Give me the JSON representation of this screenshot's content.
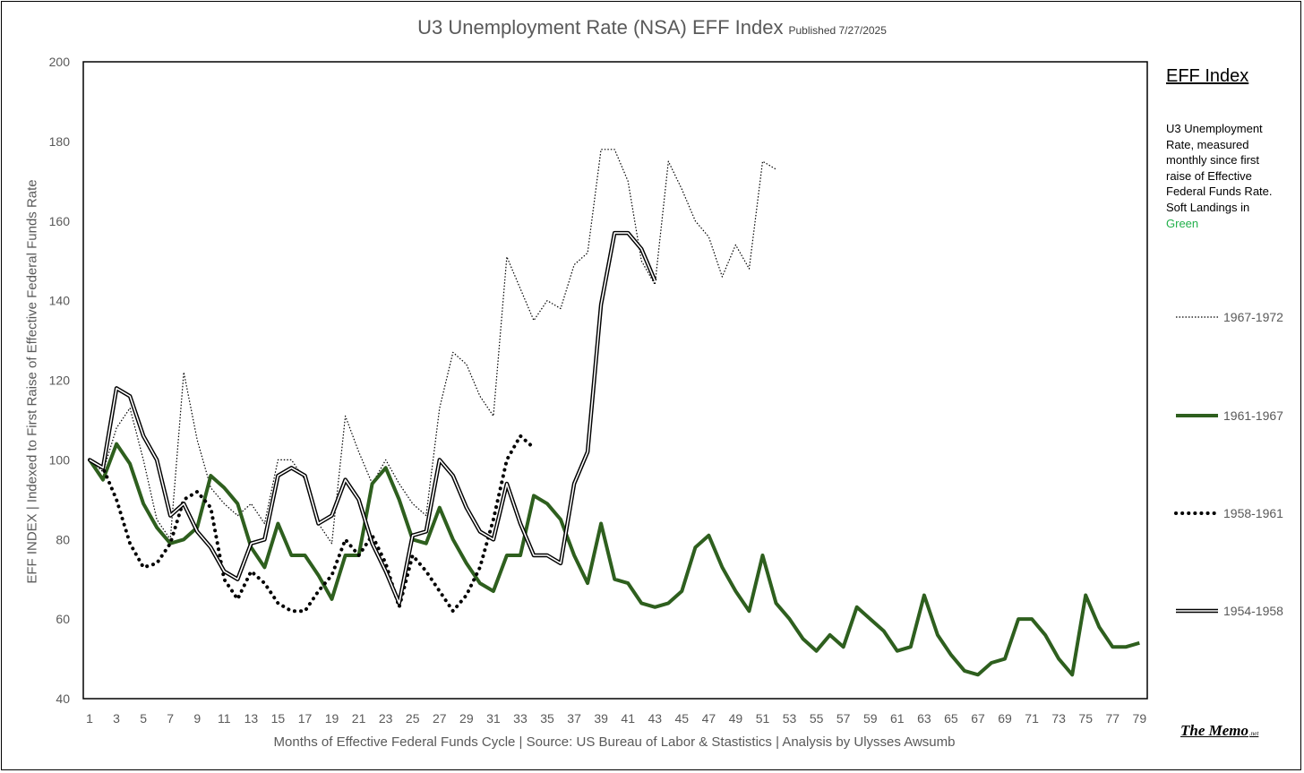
{
  "chart_data": {
    "type": "line",
    "title": "U3 Unemployment Rate (NSA) EFF Index",
    "published": "Published 7/27/2025",
    "xlabel": "Months of Effective Federal Funds Cycle  |  Source: US Bureau of Labor & Stastistics  |  Analysis by Ulysses Awsumb",
    "ylabel": "EFF INDEX | Indexed to First Raise of Effective Federal Funds Rate",
    "ylim": [
      40,
      200
    ],
    "y_ticks": [
      40,
      60,
      80,
      100,
      120,
      140,
      160,
      180,
      200
    ],
    "xlim": [
      1,
      79
    ],
    "x_ticks": [
      1,
      3,
      5,
      7,
      9,
      11,
      13,
      15,
      17,
      19,
      21,
      23,
      25,
      27,
      29,
      31,
      33,
      35,
      37,
      39,
      41,
      43,
      45,
      47,
      49,
      51,
      53,
      55,
      57,
      59,
      61,
      63,
      65,
      67,
      69,
      71,
      73,
      75,
      77,
      79
    ],
    "legend_position": "right",
    "series": [
      {
        "name": "1967-1972",
        "style": "thin-dotted",
        "color": "#000000",
        "values": [
          100,
          97,
          108,
          113,
          100,
          85,
          80,
          122,
          105,
          93,
          89,
          86,
          89,
          84,
          100,
          100,
          95,
          84,
          79,
          111,
          102,
          94,
          100,
          94,
          89,
          86,
          113,
          127,
          124,
          116,
          111,
          151,
          143,
          135,
          140,
          138,
          149,
          152,
          178,
          178,
          170,
          150,
          144,
          175,
          168,
          160,
          156,
          146,
          154,
          148,
          175,
          173
        ]
      },
      {
        "name": "1961-1967",
        "style": "thick-solid",
        "color": "#2e5f1e",
        "values": [
          100,
          95,
          104,
          99,
          89,
          83,
          79,
          80,
          83,
          96,
          93,
          89,
          78,
          73,
          84,
          76,
          76,
          71,
          65,
          76,
          76,
          94,
          98,
          90,
          80,
          79,
          88,
          80,
          74,
          69,
          67,
          76,
          76,
          91,
          89,
          85,
          76,
          69,
          84,
          70,
          69,
          64,
          63,
          64,
          67,
          78,
          81,
          73,
          67,
          62,
          76,
          64,
          60,
          55,
          52,
          56,
          53,
          63,
          60,
          57,
          52,
          53,
          66,
          56,
          51,
          47,
          46,
          49,
          50,
          60,
          60,
          56,
          50,
          46,
          66,
          58,
          53,
          53,
          54
        ]
      },
      {
        "name": "1958-1961",
        "style": "heavy-dotted",
        "color": "#000000",
        "values": [
          100,
          98,
          90,
          79,
          73,
          74,
          79,
          90,
          92,
          88,
          70,
          65,
          72,
          69,
          64,
          62,
          62,
          67,
          71,
          80,
          76,
          81,
          74,
          63,
          76,
          72,
          67,
          62,
          66,
          73,
          85,
          100,
          106,
          103
        ]
      },
      {
        "name": "1954-1958",
        "style": "double-line",
        "color": "#000000",
        "values": [
          100,
          98,
          118,
          116,
          106,
          100,
          86,
          89,
          82,
          78,
          72,
          70,
          79,
          80,
          96,
          98,
          96,
          84,
          86,
          95,
          90,
          79,
          72,
          64,
          81,
          82,
          100,
          96,
          88,
          82,
          80,
          94,
          84,
          76,
          76,
          74,
          94,
          102,
          139,
          157,
          157,
          153,
          145
        ]
      }
    ],
    "side_title": "EFF Index",
    "side_description": "U3 Unemployment Rate, measured monthly since first raise of Effective Federal Funds Rate. Soft Landings in",
    "side_description_green": "Green"
  },
  "branding": {
    "memo": "The Memo",
    "memo_suffix": ".net"
  }
}
